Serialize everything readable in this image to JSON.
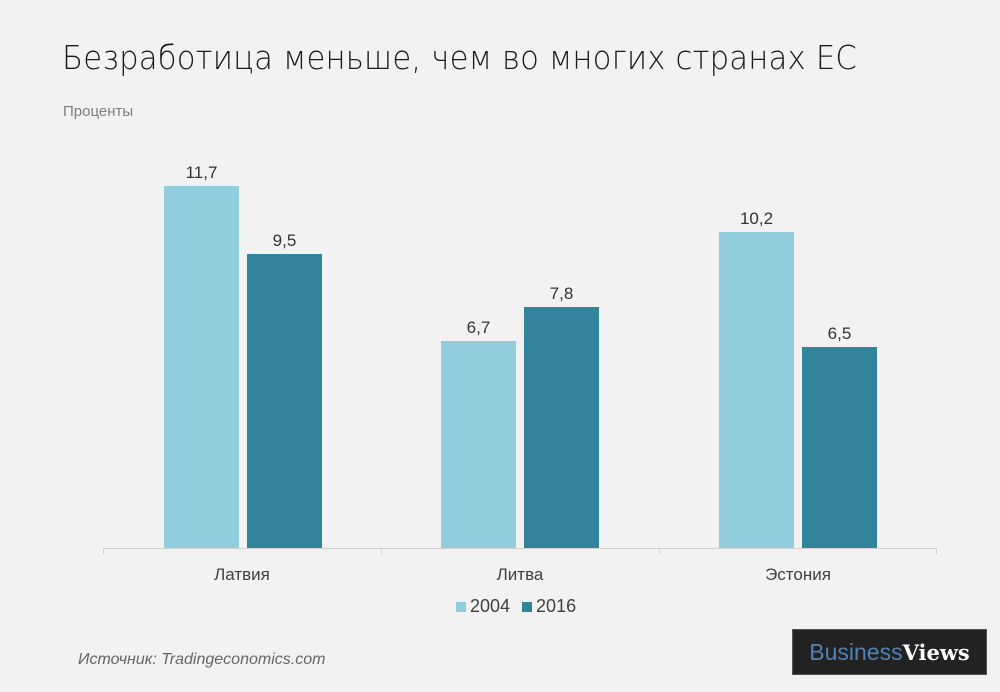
{
  "header": {
    "title": "Безработица меньше, чем во многих странах ЕС",
    "subtitle": "Проценты"
  },
  "colors": {
    "series_2004": "#92cddd",
    "series_2016": "#31849b",
    "background": "#f2f2f2"
  },
  "chart_data": {
    "type": "bar",
    "title": "Безработица меньше, чем во многих странах ЕС",
    "subtitle": "Проценты",
    "xlabel": "",
    "ylabel": "Проценты",
    "categories": [
      "Латвия",
      "Литва",
      "Эстония"
    ],
    "series": [
      {
        "name": "2004",
        "color": "#92cddd",
        "values": [
          11.7,
          6.7,
          10.2
        ],
        "labels": [
          "11,7",
          "6,7",
          "10,2"
        ]
      },
      {
        "name": "2016",
        "color": "#31849b",
        "values": [
          9.5,
          7.8,
          6.5
        ],
        "labels": [
          "9,5",
          "7,8",
          "6,5"
        ]
      }
    ],
    "ylim": [
      0,
      12
    ],
    "grid": false,
    "legend_position": "bottom"
  },
  "legend": {
    "items": [
      {
        "label": "2004"
      },
      {
        "label": "2016"
      }
    ]
  },
  "footer": {
    "source": "Источник: Tradingeconomics.com",
    "logo_part1": "Business",
    "logo_part2": "Views"
  }
}
